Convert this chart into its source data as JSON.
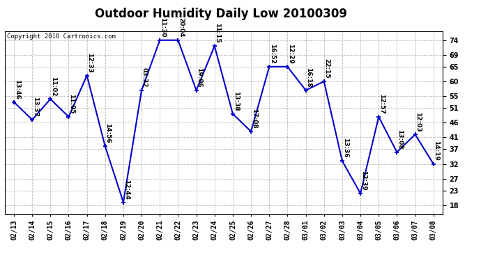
{
  "title": "Outdoor Humidity Daily Low 20100309",
  "copyright": "Copyright 2010 Cartronics.com",
  "dates": [
    "02/13",
    "02/14",
    "02/15",
    "02/16",
    "02/17",
    "02/18",
    "02/19",
    "02/20",
    "02/21",
    "02/22",
    "02/23",
    "02/24",
    "02/25",
    "02/26",
    "02/27",
    "02/28",
    "03/01",
    "03/02",
    "03/03",
    "03/04",
    "03/05",
    "03/06",
    "03/07",
    "03/08"
  ],
  "values": [
    53,
    47,
    54,
    48,
    62,
    38,
    19,
    57,
    74,
    74,
    57,
    72,
    49,
    43,
    65,
    65,
    57,
    60,
    33,
    22,
    48,
    36,
    42,
    32
  ],
  "labels": [
    "13:46",
    "13:37",
    "11:02",
    "11:05",
    "12:33",
    "14:56",
    "12:44",
    "03:32",
    "11:30",
    "20:04",
    "19:06",
    "11:15",
    "13:38",
    "17:08",
    "16:52",
    "12:29",
    "16:18",
    "22:15",
    "13:36",
    "12:39",
    "12:57",
    "13:08",
    "12:03",
    "14:19"
  ],
  "line_color": "#0000cc",
  "marker_color": "#0000cc",
  "bg_color": "#ffffff",
  "plot_bg_color": "#ffffff",
  "grid_color": "#bbbbbb",
  "yticks": [
    18,
    23,
    27,
    32,
    37,
    41,
    46,
    51,
    55,
    60,
    65,
    69,
    74
  ],
  "ylim": [
    15,
    77
  ],
  "title_fontsize": 12,
  "label_fontsize": 6.5,
  "tick_fontsize": 7,
  "copyright_fontsize": 6.5
}
